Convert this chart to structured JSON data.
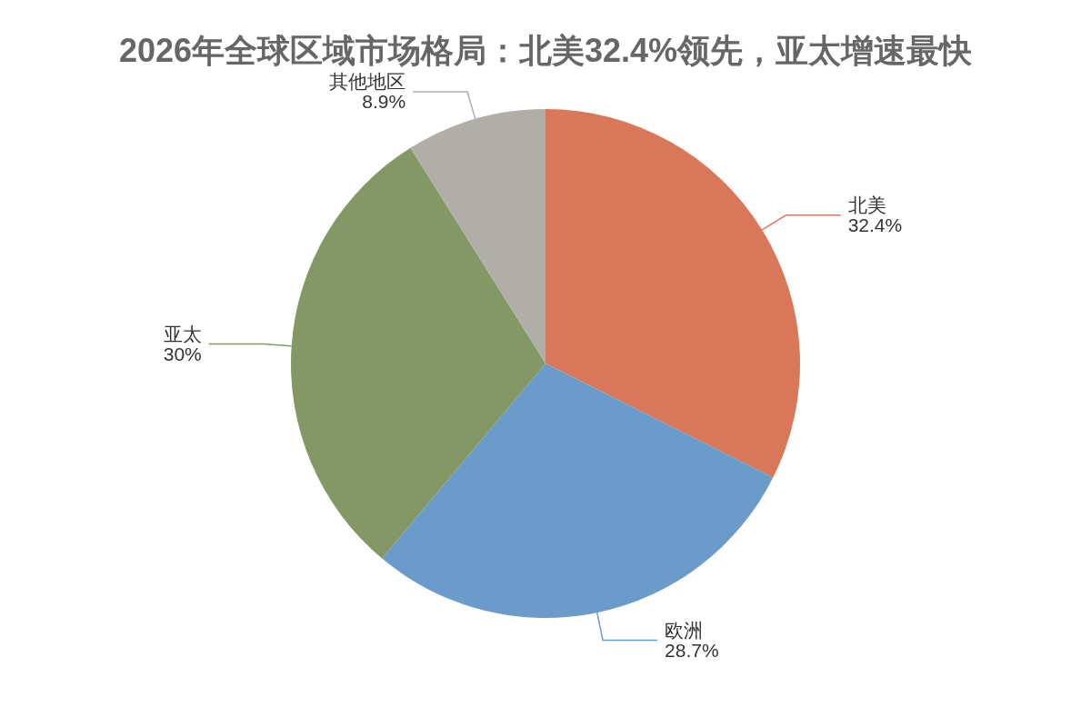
{
  "chart_data": {
    "type": "pie",
    "title": "2026年全球区域市场格局：北美32.4%领先，亚太增速最快",
    "categories": [
      "北美",
      "欧洲",
      "亚太",
      "其他地区"
    ],
    "values": [
      32.4,
      28.7,
      30,
      8.9
    ],
    "colors": [
      "#d9775a",
      "#6b9bcb",
      "#839865",
      "#b0aea6"
    ],
    "value_labels": [
      "32.4%",
      "28.7%",
      "30%",
      "8.9%"
    ]
  }
}
